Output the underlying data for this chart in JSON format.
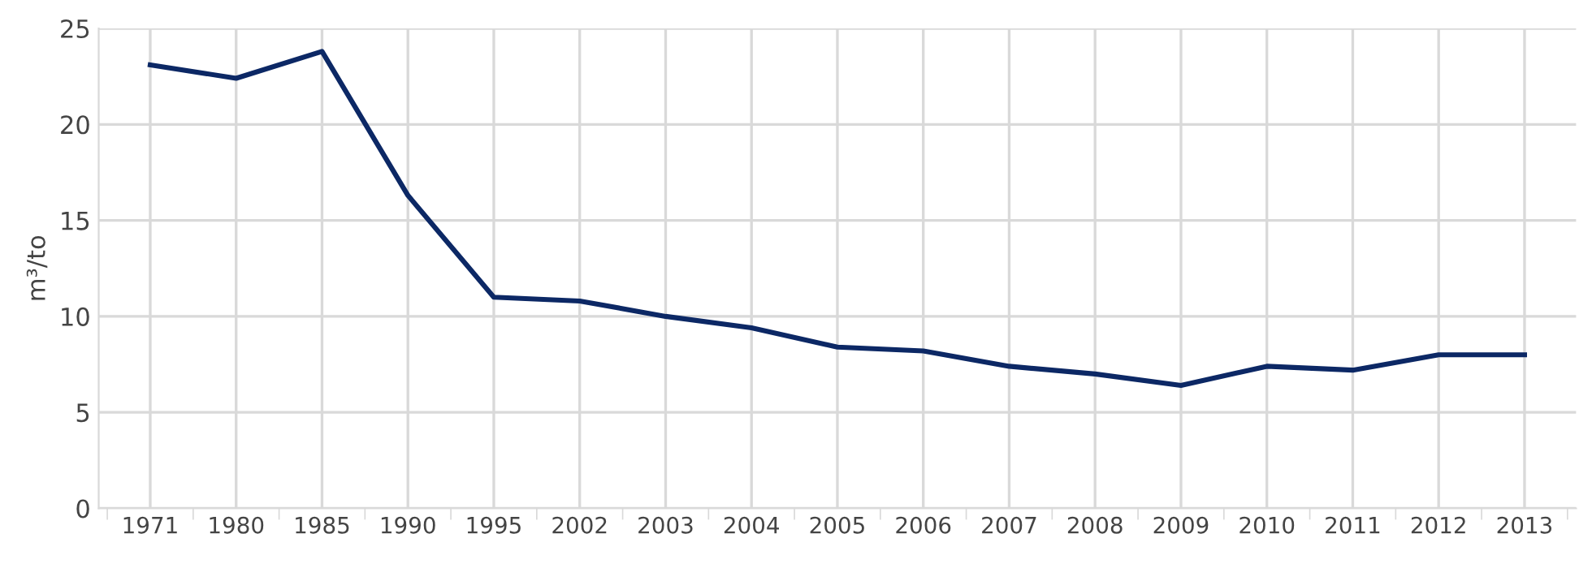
{
  "chart_data": {
    "type": "line",
    "ylabel": "m³/to",
    "categories": [
      "1971",
      "1980",
      "1985",
      "1990",
      "1995",
      "2002",
      "2003",
      "2004",
      "2005",
      "2006",
      "2007",
      "2008",
      "2009",
      "2010",
      "2011",
      "2012",
      "2013"
    ],
    "series": [
      {
        "color": "#0c2865",
        "values": [
          23.1,
          22.4,
          23.8,
          16.3,
          11.0,
          10.8,
          10.0,
          9.4,
          8.4,
          8.2,
          7.4,
          7.0,
          6.4,
          7.4,
          7.2,
          8.0,
          8.0
        ]
      }
    ],
    "ylim": [
      0,
      25
    ],
    "yticks": [
      0,
      5,
      10,
      15,
      20,
      25
    ],
    "grid": true,
    "marker": "none",
    "line_style": "solid"
  }
}
